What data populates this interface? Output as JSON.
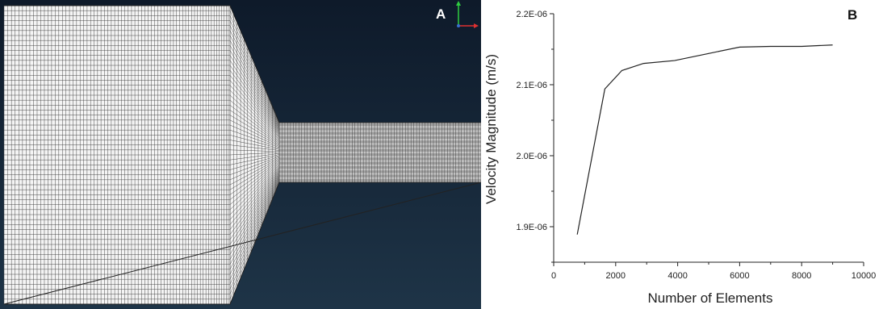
{
  "panel_a": {
    "label": "A",
    "background_top": "#0e1a2a",
    "background_bottom": "#1e3447",
    "mesh_fill": "#f4f4f4",
    "mesh_line": "#3a3a3a",
    "axis_triad": {
      "y_color": "#2ecc40",
      "x_color": "#e03030",
      "z_color": "#3a6fd0"
    }
  },
  "panel_b": {
    "label": "B"
  },
  "chart_data": {
    "type": "line",
    "title": "",
    "xlabel": "Number of Elements",
    "ylabel": "Velocity Magnitude (m/s)",
    "xlim": [
      0,
      10000
    ],
    "ylim": [
      1.85e-06,
      2.2e-06
    ],
    "x_ticks": [
      0,
      2000,
      4000,
      6000,
      8000,
      10000
    ],
    "x_tick_labels": [
      "0",
      "2000",
      "4000",
      "6000",
      "8000",
      "10000"
    ],
    "y_ticks": [
      1.9e-06,
      2e-06,
      2.1e-06,
      2.2e-06
    ],
    "y_tick_labels": [
      "1.9E-06",
      "2.0E-06",
      "2.1E-06",
      "2.2E-06"
    ],
    "grid": false,
    "line_color": "#222222",
    "series": [
      {
        "x": [
          760,
          1650,
          2200,
          2900,
          3900,
          5000,
          6000,
          7000,
          8000,
          9000
        ],
        "values": [
          1.889e-06,
          2.094e-06,
          2.12e-06,
          2.13e-06,
          2.134e-06,
          2.144e-06,
          2.153e-06,
          2.154e-06,
          2.154e-06,
          2.156e-06
        ]
      }
    ]
  }
}
